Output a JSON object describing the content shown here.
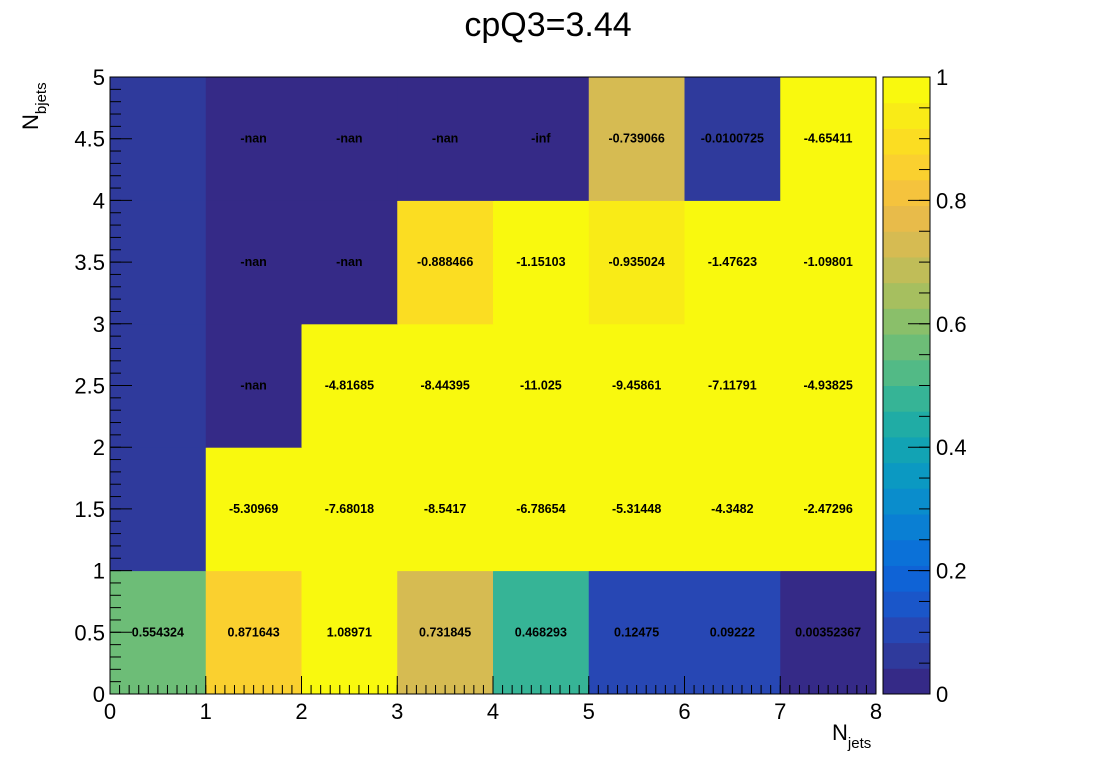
{
  "chart_data": {
    "type": "heatmap",
    "title": "cpQ3=3.44",
    "xlabel_main": "N",
    "xlabel_sub": "jets",
    "ylabel_main": "N",
    "ylabel_sub": "bjets",
    "xlim": [
      0,
      8
    ],
    "ylim": [
      0,
      5
    ],
    "zlim": [
      0,
      1
    ],
    "x_bin_edges": [
      0,
      1,
      2,
      3,
      4,
      5,
      6,
      7,
      8
    ],
    "y_bin_edges": [
      0,
      1,
      2,
      3,
      4,
      5
    ],
    "x_tick_labels": [
      "0",
      "1",
      "2",
      "3",
      "4",
      "5",
      "6",
      "7",
      "8"
    ],
    "y_tick_labels": [
      "0",
      "0.5",
      "1",
      "1.5",
      "2",
      "2.5",
      "3",
      "3.5",
      "4",
      "4.5",
      "5"
    ],
    "z_tick_labels": [
      "0",
      "0.2",
      "0.4",
      "0.6",
      "0.8",
      "1"
    ],
    "palette": [
      "#352a87",
      "#2f3a9c",
      "#2747b4",
      "#1a56c9",
      "#0f63d6",
      "#0b71d8",
      "#0a7fd3",
      "#0a8dcc",
      "#0b99c2",
      "#12a3b4",
      "#20aca5",
      "#36b496",
      "#52ba86",
      "#6dbd77",
      "#8abf6a",
      "#a6bf5f",
      "#c0bd58",
      "#d6bb52",
      "#e8bb4a",
      "#f5c33d",
      "#fad02f",
      "#fbdd22",
      "#f9eb17",
      "#f9f90e"
    ],
    "color_values": [
      [
        0.554324,
        0.871643,
        1.0,
        0.731845,
        0.468293,
        0.12475,
        0.09222,
        0.00352367
      ],
      [
        0.05,
        1.0,
        1.0,
        1.0,
        1.0,
        1.0,
        1.0,
        1.0
      ],
      [
        0.05,
        0.0,
        1.0,
        1.0,
        1.0,
        1.0,
        1.0,
        1.0
      ],
      [
        0.05,
        0.0,
        0.0,
        0.888466,
        1.0,
        0.935024,
        1.0,
        1.0
      ],
      [
        0.05,
        0.0,
        0.0,
        0.0,
        0.0,
        0.739066,
        0.05,
        1.0
      ]
    ],
    "cell_labels": [
      [
        "0.554324",
        "0.871643",
        "1.08971",
        "0.731845",
        "0.468293",
        "0.12475",
        "0.09222",
        "0.00352367"
      ],
      [
        "",
        "-5.30969",
        "-7.68018",
        "-8.5417",
        "-6.78654",
        "-5.31448",
        "-4.3482",
        "-2.47296"
      ],
      [
        "",
        "-nan",
        "-4.81685",
        "-8.44395",
        "-11.025",
        "-9.45861",
        "-7.11791",
        "-4.93825"
      ],
      [
        "",
        "-nan",
        "-nan",
        "-0.888466",
        "-1.15103",
        "-0.935024",
        "-1.47623",
        "-1.09801"
      ],
      [
        "",
        "-nan",
        "-nan",
        "-nan",
        "-inf",
        "-0.739066",
        "-0.0100725",
        "-4.65411"
      ]
    ]
  }
}
